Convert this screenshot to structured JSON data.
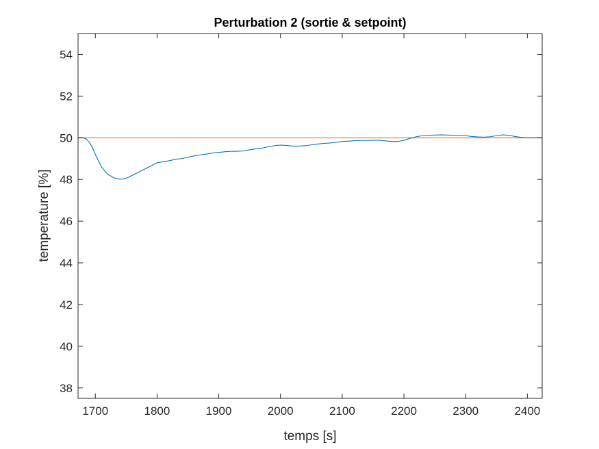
{
  "chart_data": {
    "type": "line",
    "title": "Perturbation 2 (sortie & setpoint)",
    "xlabel": "temps [s]",
    "ylabel": "temperature [%]",
    "xlim": [
      1672,
      2424
    ],
    "ylim": [
      37.5,
      55
    ],
    "xticks": [
      1700,
      1800,
      1900,
      2000,
      2100,
      2200,
      2300,
      2400
    ],
    "yticks": [
      38,
      40,
      42,
      44,
      46,
      48,
      50,
      52,
      54
    ],
    "grid": false,
    "colors": {
      "output": "#0072BD",
      "setpoint": "#EDA05F",
      "axes": "#262626",
      "background": "#FFFFFF"
    },
    "series": [
      {
        "key": "output",
        "x": [
          1672,
          1680,
          1685,
          1690,
          1695,
          1700,
          1710,
          1720,
          1730,
          1738,
          1745,
          1752,
          1760,
          1770,
          1780,
          1790,
          1800,
          1810,
          1820,
          1830,
          1840,
          1850,
          1860,
          1870,
          1880,
          1890,
          1900,
          1910,
          1920,
          1930,
          1940,
          1950,
          1960,
          1970,
          1980,
          1990,
          2000,
          2010,
          2020,
          2030,
          2040,
          2050,
          2060,
          2070,
          2080,
          2090,
          2100,
          2110,
          2120,
          2130,
          2140,
          2150,
          2160,
          2170,
          2180,
          2190,
          2200,
          2210,
          2220,
          2230,
          2240,
          2250,
          2260,
          2270,
          2280,
          2290,
          2300,
          2310,
          2320,
          2330,
          2340,
          2350,
          2360,
          2370,
          2380,
          2390,
          2400,
          2410,
          2424
        ],
        "y": [
          50.0,
          50.0,
          49.95,
          49.8,
          49.55,
          49.2,
          48.6,
          48.25,
          48.08,
          48.02,
          48.02,
          48.08,
          48.2,
          48.35,
          48.5,
          48.65,
          48.8,
          48.85,
          48.9,
          48.97,
          49.0,
          49.07,
          49.13,
          49.18,
          49.22,
          49.27,
          49.3,
          49.33,
          49.35,
          49.35,
          49.37,
          49.42,
          49.47,
          49.5,
          49.57,
          49.62,
          49.65,
          49.63,
          49.6,
          49.6,
          49.62,
          49.66,
          49.7,
          49.73,
          49.75,
          49.78,
          49.82,
          49.84,
          49.86,
          49.87,
          49.87,
          49.88,
          49.88,
          49.85,
          49.82,
          49.82,
          49.88,
          49.97,
          50.05,
          50.1,
          50.12,
          50.13,
          50.14,
          50.13,
          50.12,
          50.12,
          50.1,
          50.06,
          50.04,
          50.03,
          50.05,
          50.1,
          50.14,
          50.12,
          50.06,
          50.02,
          50.0,
          50.0,
          50.0
        ]
      },
      {
        "key": "setpoint",
        "x": [
          1672,
          2424
        ],
        "y": [
          50.0,
          50.0
        ]
      }
    ]
  }
}
